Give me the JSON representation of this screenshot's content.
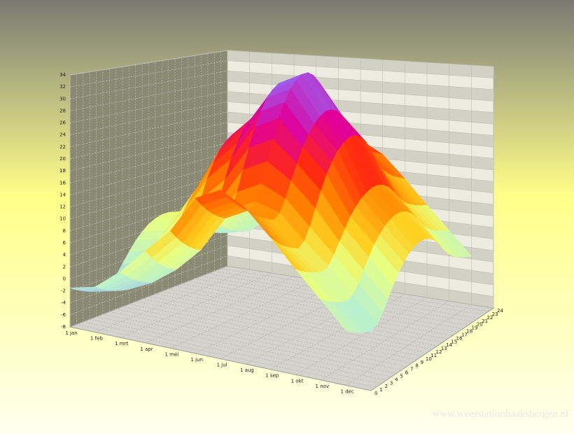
{
  "chart_data": {
    "type": "surface",
    "categories": [
      "1 jan",
      "1 feb",
      "1 mrt",
      "1 apr",
      "1 mei",
      "1 jun",
      "1 jul",
      "1 aug",
      "1 sep",
      "1 okt",
      "1 nov",
      "1 dec"
    ],
    "hours": [
      0,
      1,
      2,
      3,
      4,
      5,
      6,
      7,
      8,
      9,
      10,
      11,
      12,
      13,
      14,
      15,
      16,
      17,
      18,
      19,
      20,
      21,
      22,
      23,
      24
    ],
    "values": [
      [
        -1.5,
        -2.2,
        -2.8,
        -3.3,
        -3.7,
        -4,
        -3.5,
        -2.2,
        -0.5,
        1.2,
        2.8,
        4,
        5,
        5.6,
        6,
        6,
        5.6,
        4.8,
        3.5,
        2,
        0.8,
        0,
        -0.6,
        -1.1,
        -1.5
      ],
      [
        -0.5,
        -1.2,
        -1.8,
        -2.3,
        -2.7,
        -3,
        -2.5,
        -1.2,
        0.5,
        2.2,
        3.8,
        5,
        6,
        6.6,
        7,
        7,
        6.6,
        5.8,
        4.5,
        3,
        1.8,
        1,
        0.4,
        -0.1,
        -0.5
      ],
      [
        2.8,
        1.7,
        0.8,
        0.1,
        -0.5,
        -1,
        -0.2,
        1.7,
        4.3,
        6.8,
        9.2,
        11,
        12.5,
        13.4,
        14,
        14,
        13.4,
        12.2,
        10.3,
        8,
        6.2,
        5,
        4.1,
        3.4,
        2.8
      ],
      [
        7,
        5.6,
        4.4,
        3.4,
        2.6,
        2,
        3,
        5.6,
        9,
        12.4,
        15.6,
        18,
        20,
        21.2,
        22,
        22,
        21.2,
        19.6,
        17,
        14,
        11.6,
        10,
        8.8,
        7.8,
        7
      ],
      [
        11,
        9.6,
        8.4,
        7.4,
        6.6,
        6,
        7,
        9.6,
        13,
        16.4,
        19.6,
        22,
        24,
        25.2,
        26,
        26,
        25.2,
        23.6,
        21,
        18,
        15.6,
        14,
        12.8,
        11.8,
        11
      ],
      [
        17,
        15.6,
        14.4,
        13.4,
        12.6,
        12,
        13,
        15.6,
        19,
        22.4,
        25.6,
        28,
        30,
        31.2,
        32,
        32,
        31.2,
        29.6,
        27,
        24,
        21.6,
        20,
        18.8,
        17.8,
        17
      ],
      [
        19,
        17.6,
        16.4,
        15.4,
        14.6,
        14,
        15,
        17.6,
        21,
        24.4,
        27.6,
        30,
        32,
        33.2,
        34,
        34,
        33.2,
        31.6,
        29,
        26,
        23.6,
        22,
        20.8,
        19.8,
        19
      ],
      [
        16.8,
        15.7,
        14.8,
        14.1,
        13.5,
        13,
        13.8,
        15.7,
        18.3,
        20.8,
        23.2,
        25,
        26.5,
        27.4,
        28,
        28,
        27.4,
        26.2,
        24.3,
        22,
        20.2,
        19,
        18.1,
        17.4,
        16.8
      ],
      [
        12.8,
        11.7,
        10.8,
        10.1,
        9.5,
        9,
        9.8,
        11.7,
        14.3,
        16.8,
        19.2,
        21,
        22.5,
        23.4,
        24,
        24,
        23.4,
        22.2,
        20.3,
        18,
        16.2,
        15,
        14.1,
        13.4,
        12.8
      ],
      [
        8.5,
        7.8,
        7.2,
        6.7,
        6.3,
        6,
        6.5,
        7.8,
        9.5,
        11.2,
        12.8,
        14,
        15,
        15.6,
        16,
        16,
        15.6,
        14.8,
        13.5,
        12,
        10.8,
        10,
        9.4,
        8.9,
        8.5
      ],
      [
        4.5,
        3.8,
        3.2,
        2.7,
        2.3,
        2,
        2.5,
        3.8,
        5.5,
        7.2,
        8.8,
        10,
        11,
        11.6,
        12,
        12,
        11.6,
        10.8,
        9.5,
        8,
        6.8,
        6,
        5.4,
        4.9,
        4.5
      ],
      [
        0.5,
        -0.2,
        -0.8,
        -1.3,
        -1.7,
        -2,
        -1.5,
        -0.2,
        1.5,
        3.2,
        4.8,
        6,
        7,
        7.6,
        8,
        8,
        7.6,
        6.8,
        5.5,
        4,
        2.8,
        2,
        1.4,
        0.9,
        0.5
      ]
    ],
    "zlim": [
      -8,
      34
    ],
    "zticks": [
      -8,
      -6,
      -4,
      -2,
      0,
      2,
      4,
      6,
      8,
      10,
      12,
      14,
      16,
      18,
      20,
      22,
      24,
      26,
      28,
      30,
      32,
      34
    ],
    "colorscale": [
      {
        "value": -8,
        "color": "#8c8cff"
      },
      {
        "value": 0,
        "color": "#b8f0d0"
      },
      {
        "value": 6,
        "color": "#e8ff80"
      },
      {
        "value": 10,
        "color": "#ffd020"
      },
      {
        "value": 15,
        "color": "#ff8000"
      },
      {
        "value": 20,
        "color": "#ff2a10"
      },
      {
        "value": 26,
        "color": "#e0009a"
      },
      {
        "value": 34,
        "color": "#9070ff"
      }
    ],
    "grid": true,
    "watermark": "www.weerstationhaaksbergen.nl"
  }
}
